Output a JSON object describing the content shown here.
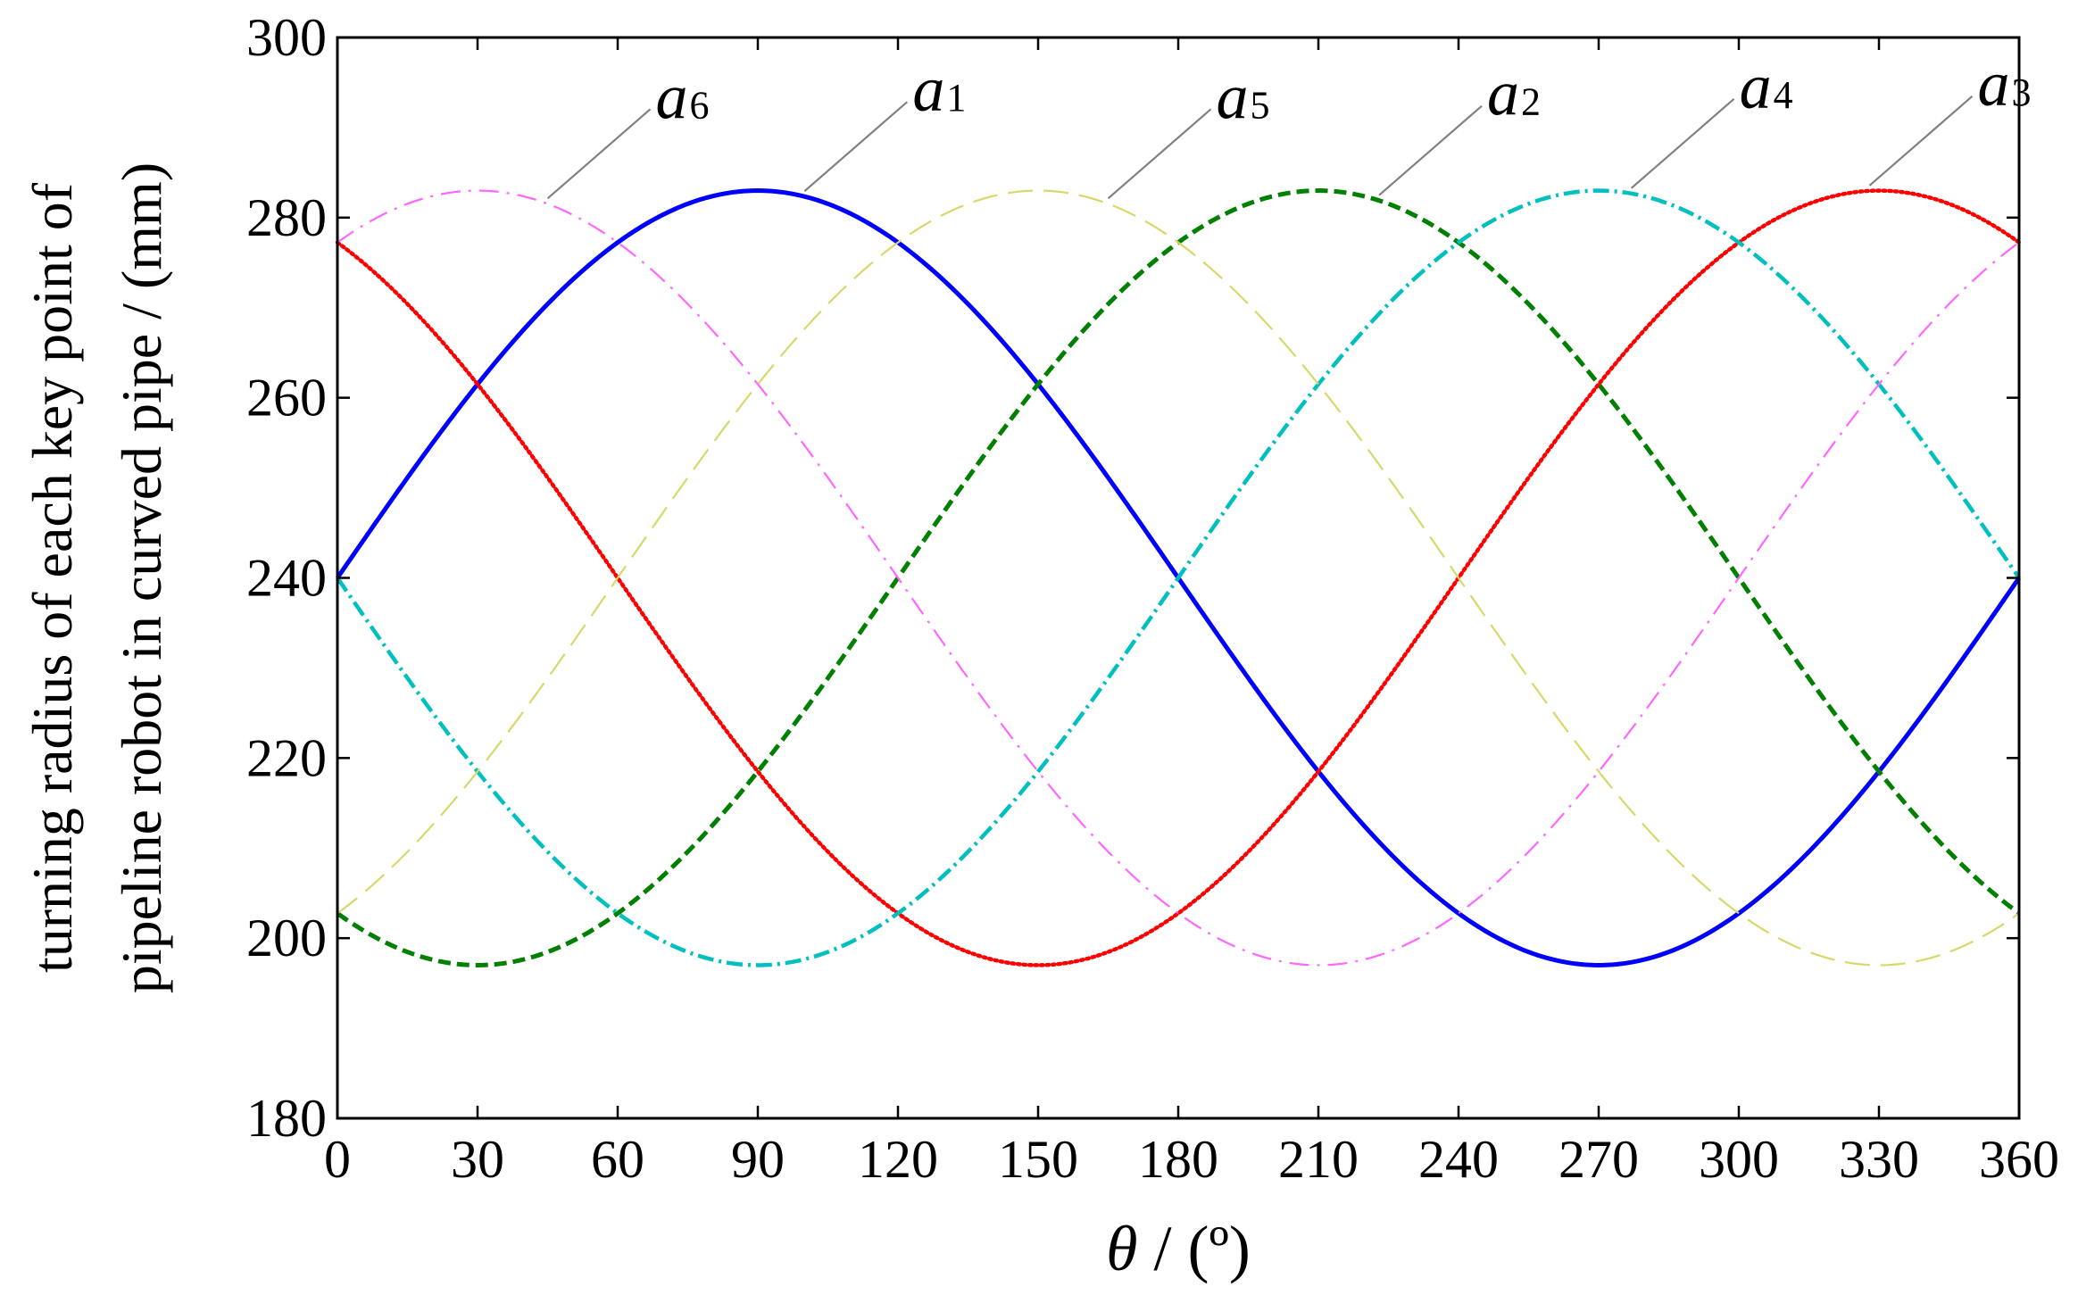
{
  "chart_data": {
    "type": "line",
    "title": "",
    "xlabel": {
      "symbol": "θ",
      "unit": " / (º)"
    },
    "ylabel": [
      "turning radius of each key point of",
      "pipeline robot in curved pipe / (mm)"
    ],
    "xlim": [
      0,
      360
    ],
    "ylim": [
      180,
      300
    ],
    "xticks": [
      0,
      30,
      60,
      90,
      120,
      150,
      180,
      210,
      240,
      270,
      300,
      330,
      360
    ],
    "yticks": [
      180,
      200,
      220,
      240,
      260,
      280,
      300
    ],
    "grid": false,
    "legend": "none",
    "curve_model": {
      "center": 240,
      "amplitude": 43
    },
    "series": [
      {
        "name": "a1",
        "base": "a",
        "sub": "1",
        "color": "#0000ff",
        "style": "solid",
        "peak_theta": 90,
        "x": [
          0,
          30,
          60,
          90,
          120,
          150,
          180,
          210,
          240,
          270,
          300,
          330,
          360
        ],
        "values": [
          240,
          261.5,
          277.2,
          283,
          277.2,
          261.5,
          240,
          218.5,
          202.8,
          197,
          202.8,
          218.5,
          240
        ]
      },
      {
        "name": "a2",
        "base": "a",
        "sub": "2",
        "color": "#008000",
        "style": "dashed",
        "peak_theta": 210,
        "x": [
          0,
          30,
          60,
          90,
          120,
          150,
          180,
          210,
          240,
          270,
          300,
          330,
          360
        ],
        "values": [
          202.8,
          197,
          202.8,
          218.5,
          240,
          261.5,
          277.2,
          283,
          277.2,
          261.5,
          240,
          218.5,
          202.8
        ]
      },
      {
        "name": "a3",
        "base": "a",
        "sub": "3",
        "color": "#ff0000",
        "style": "dotted",
        "peak_theta": 330,
        "x": [
          0,
          30,
          60,
          90,
          120,
          150,
          180,
          210,
          240,
          270,
          300,
          330,
          360
        ],
        "values": [
          277.2,
          261.5,
          240,
          218.5,
          202.8,
          197,
          202.8,
          218.5,
          240,
          261.5,
          277.2,
          283,
          277.2
        ]
      },
      {
        "name": "a4",
        "base": "a",
        "sub": "4",
        "color": "#00bfbf",
        "style": "dashdot",
        "peak_theta": 270,
        "x": [
          0,
          30,
          60,
          90,
          120,
          150,
          180,
          210,
          240,
          270,
          300,
          330,
          360
        ],
        "values": [
          240,
          218.5,
          202.8,
          197,
          202.8,
          218.5,
          240,
          261.5,
          277.2,
          283,
          277.2,
          261.5,
          240
        ]
      },
      {
        "name": "a5",
        "base": "a",
        "sub": "5",
        "color": "#d8d86a",
        "style": "longdash",
        "peak_theta": 150,
        "x": [
          0,
          30,
          60,
          90,
          120,
          150,
          180,
          210,
          240,
          270,
          300,
          330,
          360
        ],
        "values": [
          202.8,
          218.5,
          240,
          261.5,
          277.2,
          283,
          277.2,
          261.5,
          240,
          218.5,
          202.8,
          197,
          202.8
        ]
      },
      {
        "name": "a6",
        "base": "a",
        "sub": "6",
        "color": "#ff66ff",
        "style": "thindashdot",
        "peak_theta": 30,
        "x": [
          0,
          30,
          60,
          90,
          120,
          150,
          180,
          210,
          240,
          270,
          300,
          330,
          360
        ],
        "values": [
          277.2,
          283,
          277.2,
          261.5,
          240,
          218.5,
          202.8,
          197,
          202.8,
          218.5,
          240,
          261.5,
          277.2
        ]
      }
    ],
    "annotations": [
      {
        "series": "a6",
        "point_theta": 45
      },
      {
        "series": "a1",
        "point_theta": 100
      },
      {
        "series": "a5",
        "point_theta": 165
      },
      {
        "series": "a2",
        "point_theta": 223
      },
      {
        "series": "a4",
        "point_theta": 277
      },
      {
        "series": "a3",
        "point_theta": 328
      }
    ]
  }
}
